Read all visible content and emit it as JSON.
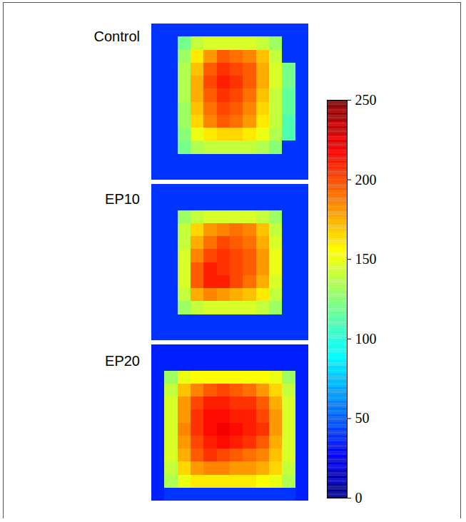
{
  "chart_data": {
    "type": "heatmap",
    "panels": [
      {
        "title": "Control",
        "cells": [
          [
            40,
            40,
            40,
            40,
            40,
            40,
            40,
            40,
            40,
            40,
            40,
            40
          ],
          [
            40,
            40,
            120,
            140,
            145,
            145,
            145,
            145,
            140,
            130,
            40,
            40
          ],
          [
            40,
            40,
            130,
            160,
            180,
            195,
            190,
            185,
            170,
            140,
            40,
            40
          ],
          [
            40,
            40,
            135,
            170,
            195,
            205,
            200,
            195,
            175,
            145,
            120,
            40
          ],
          [
            40,
            40,
            135,
            175,
            200,
            210,
            205,
            195,
            175,
            145,
            120,
            40
          ],
          [
            40,
            40,
            135,
            175,
            195,
            205,
            200,
            190,
            170,
            140,
            115,
            40
          ],
          [
            40,
            40,
            130,
            170,
            190,
            200,
            195,
            185,
            165,
            140,
            115,
            40
          ],
          [
            40,
            40,
            130,
            165,
            185,
            195,
            190,
            180,
            160,
            140,
            110,
            40
          ],
          [
            40,
            40,
            125,
            150,
            160,
            165,
            165,
            160,
            150,
            135,
            110,
            40
          ],
          [
            40,
            40,
            120,
            135,
            140,
            140,
            140,
            140,
            135,
            125,
            40,
            40
          ],
          [
            40,
            40,
            40,
            40,
            40,
            40,
            40,
            40,
            40,
            40,
            40,
            40
          ],
          [
            40,
            40,
            40,
            40,
            40,
            40,
            40,
            40,
            40,
            40,
            40,
            40
          ]
        ]
      },
      {
        "title": "EP10",
        "cells": [
          [
            40,
            40,
            40,
            40,
            40,
            40,
            40,
            40,
            40,
            40,
            40,
            40
          ],
          [
            40,
            40,
            40,
            40,
            40,
            40,
            40,
            40,
            40,
            40,
            40,
            40
          ],
          [
            40,
            40,
            130,
            140,
            145,
            145,
            145,
            145,
            140,
            130,
            40,
            40
          ],
          [
            40,
            40,
            140,
            165,
            180,
            185,
            190,
            185,
            170,
            140,
            40,
            40
          ],
          [
            40,
            40,
            140,
            175,
            190,
            200,
            195,
            190,
            175,
            145,
            40,
            40
          ],
          [
            40,
            40,
            145,
            185,
            200,
            205,
            200,
            195,
            180,
            150,
            40,
            40
          ],
          [
            40,
            40,
            145,
            195,
            210,
            205,
            200,
            195,
            180,
            150,
            40,
            40
          ],
          [
            40,
            40,
            145,
            195,
            210,
            210,
            200,
            190,
            175,
            145,
            40,
            40
          ],
          [
            40,
            40,
            140,
            175,
            185,
            180,
            175,
            170,
            160,
            140,
            40,
            40
          ],
          [
            40,
            40,
            130,
            140,
            145,
            145,
            145,
            145,
            140,
            130,
            40,
            40
          ],
          [
            40,
            40,
            40,
            40,
            40,
            40,
            40,
            40,
            40,
            40,
            40,
            40
          ],
          [
            40,
            40,
            40,
            40,
            40,
            40,
            40,
            40,
            40,
            40,
            40,
            40
          ]
        ]
      },
      {
        "title": "EP20",
        "cells": [
          [
            35,
            35,
            35,
            35,
            35,
            35,
            35,
            35,
            35,
            35,
            35,
            35
          ],
          [
            35,
            35,
            35,
            35,
            35,
            35,
            35,
            35,
            35,
            35,
            35,
            35
          ],
          [
            35,
            130,
            150,
            155,
            155,
            155,
            155,
            155,
            155,
            150,
            130,
            35
          ],
          [
            35,
            140,
            170,
            185,
            195,
            200,
            195,
            190,
            180,
            165,
            140,
            35
          ],
          [
            35,
            145,
            180,
            200,
            210,
            210,
            205,
            205,
            195,
            175,
            145,
            35
          ],
          [
            35,
            145,
            180,
            205,
            215,
            215,
            210,
            210,
            200,
            180,
            145,
            35
          ],
          [
            35,
            145,
            185,
            205,
            215,
            220,
            215,
            210,
            205,
            180,
            145,
            35
          ],
          [
            35,
            145,
            180,
            200,
            210,
            215,
            210,
            205,
            195,
            175,
            145,
            35
          ],
          [
            35,
            145,
            175,
            195,
            205,
            200,
            195,
            190,
            185,
            170,
            145,
            35
          ],
          [
            35,
            140,
            165,
            180,
            185,
            185,
            180,
            180,
            175,
            165,
            140,
            35
          ],
          [
            35,
            135,
            150,
            160,
            160,
            160,
            160,
            160,
            155,
            150,
            135,
            35
          ],
          [
            35,
            40,
            40,
            40,
            40,
            40,
            40,
            40,
            40,
            40,
            40,
            35
          ]
        ]
      }
    ],
    "colorbar_range": [
      0,
      250
    ],
    "colorbar_ticks": [
      0,
      50,
      100,
      150,
      200,
      250
    ]
  }
}
